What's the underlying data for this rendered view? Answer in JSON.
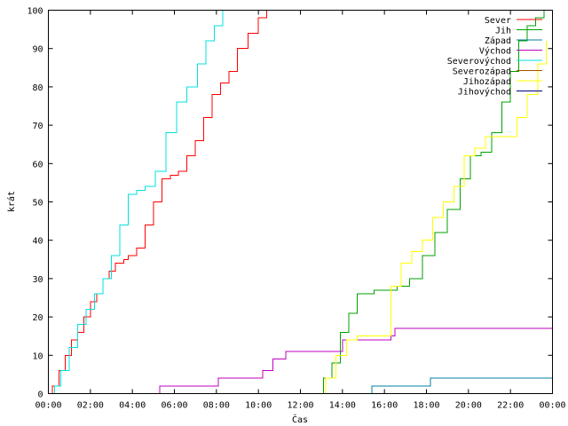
{
  "chart_data": {
    "type": "line",
    "title": "",
    "xlabel": "Čas",
    "ylabel": "krát",
    "xlim": [
      0,
      24
    ],
    "ylim": [
      0,
      100
    ],
    "x_unit": "hours",
    "x_tick_labels": [
      "00:00",
      "02:00",
      "04:00",
      "06:00",
      "08:00",
      "10:00",
      "12:00",
      "14:00",
      "16:00",
      "18:00",
      "20:00",
      "22:00",
      "00:00"
    ],
    "x_tick_values": [
      0,
      2,
      4,
      6,
      8,
      10,
      12,
      14,
      16,
      18,
      20,
      22,
      24
    ],
    "y_tick_labels": [
      "0",
      "10",
      "20",
      "30",
      "40",
      "50",
      "60",
      "70",
      "80",
      "90",
      "100"
    ],
    "y_tick_values": [
      0,
      10,
      20,
      30,
      40,
      50,
      60,
      70,
      80,
      90,
      100
    ],
    "grid": false,
    "legend_position": "top-right",
    "series": [
      {
        "name": "Sever",
        "color": "#ff0000",
        "points": [
          [
            0,
            0
          ],
          [
            0.2,
            2
          ],
          [
            0.5,
            6
          ],
          [
            0.8,
            10
          ],
          [
            1.1,
            14
          ],
          [
            1.4,
            16
          ],
          [
            1.7,
            20
          ],
          [
            2,
            24
          ],
          [
            2.3,
            26
          ],
          [
            2.6,
            30
          ],
          [
            2.9,
            32
          ],
          [
            3.2,
            34
          ],
          [
            3.6,
            35
          ],
          [
            3.8,
            36
          ],
          [
            4.2,
            38
          ],
          [
            4.6,
            44
          ],
          [
            5,
            50
          ],
          [
            5.4,
            56
          ],
          [
            5.8,
            57
          ],
          [
            6.2,
            58
          ],
          [
            6.6,
            62
          ],
          [
            7,
            66
          ],
          [
            7.4,
            72
          ],
          [
            7.8,
            78
          ],
          [
            8.2,
            81
          ],
          [
            8.6,
            84
          ],
          [
            9,
            90
          ],
          [
            9.5,
            94
          ],
          [
            10,
            98
          ],
          [
            10.4,
            100
          ]
        ]
      },
      {
        "name": "Jih",
        "color": "#00a000",
        "points": [
          [
            12.8,
            0
          ],
          [
            13.1,
            4
          ],
          [
            13.5,
            8
          ],
          [
            13.9,
            16
          ],
          [
            14.3,
            21
          ],
          [
            14.7,
            26
          ],
          [
            15.5,
            27
          ],
          [
            16.6,
            28
          ],
          [
            17.2,
            30
          ],
          [
            17.8,
            36
          ],
          [
            18.4,
            42
          ],
          [
            19,
            48
          ],
          [
            19.6,
            56
          ],
          [
            20.1,
            62
          ],
          [
            20.6,
            63
          ],
          [
            21.1,
            68
          ],
          [
            21.6,
            76
          ],
          [
            22,
            84
          ],
          [
            22.4,
            92
          ],
          [
            22.8,
            96
          ],
          [
            23.2,
            98
          ],
          [
            23.6,
            100
          ]
        ]
      },
      {
        "name": "Západ",
        "color": "#0080a0",
        "points": [
          [
            15.2,
            0
          ],
          [
            15.4,
            2
          ],
          [
            18,
            2
          ],
          [
            18.2,
            4
          ],
          [
            24,
            4
          ]
        ]
      },
      {
        "name": "Východ",
        "color": "#c000c0",
        "points": [
          [
            5.1,
            0
          ],
          [
            5.3,
            2
          ],
          [
            7.9,
            2
          ],
          [
            8.1,
            4
          ],
          [
            9.9,
            4
          ],
          [
            10.2,
            6
          ],
          [
            10.7,
            9
          ],
          [
            11.3,
            11
          ],
          [
            13.6,
            11
          ],
          [
            14,
            14
          ],
          [
            16.3,
            15
          ],
          [
            16.5,
            17
          ],
          [
            24,
            17
          ]
        ]
      },
      {
        "name": "Severovýchod",
        "color": "#00e0e0",
        "points": [
          [
            0,
            0
          ],
          [
            0.3,
            2
          ],
          [
            0.6,
            6
          ],
          [
            1,
            12
          ],
          [
            1.4,
            18
          ],
          [
            1.8,
            22
          ],
          [
            2.2,
            26
          ],
          [
            2.6,
            30
          ],
          [
            3,
            36
          ],
          [
            3.4,
            44
          ],
          [
            3.8,
            52
          ],
          [
            4.2,
            53
          ],
          [
            4.6,
            54
          ],
          [
            5.1,
            58
          ],
          [
            5.6,
            68
          ],
          [
            6.1,
            76
          ],
          [
            6.6,
            80
          ],
          [
            7.1,
            86
          ],
          [
            7.5,
            92
          ],
          [
            7.9,
            96
          ],
          [
            8.3,
            100
          ]
        ]
      },
      {
        "name": "Severozápad",
        "color": "#a05000",
        "points": []
      },
      {
        "name": "Jihozápad",
        "color": "#ffff00",
        "points": [
          [
            12.7,
            0
          ],
          [
            13.2,
            4
          ],
          [
            13.7,
            10
          ],
          [
            14.2,
            14
          ],
          [
            14.7,
            15
          ],
          [
            15.3,
            15
          ],
          [
            15.8,
            15
          ],
          [
            16.3,
            28
          ],
          [
            16.8,
            34
          ],
          [
            17.3,
            37
          ],
          [
            17.8,
            40
          ],
          [
            18.3,
            46
          ],
          [
            18.8,
            50
          ],
          [
            19.3,
            54
          ],
          [
            19.8,
            62
          ],
          [
            20.3,
            64
          ],
          [
            20.8,
            67
          ],
          [
            21.8,
            67
          ],
          [
            22.3,
            72
          ],
          [
            22.8,
            78
          ],
          [
            23.3,
            86
          ],
          [
            23.7,
            92
          ]
        ]
      },
      {
        "name": "Jihovýchod",
        "color": "#000080",
        "points": []
      }
    ]
  }
}
